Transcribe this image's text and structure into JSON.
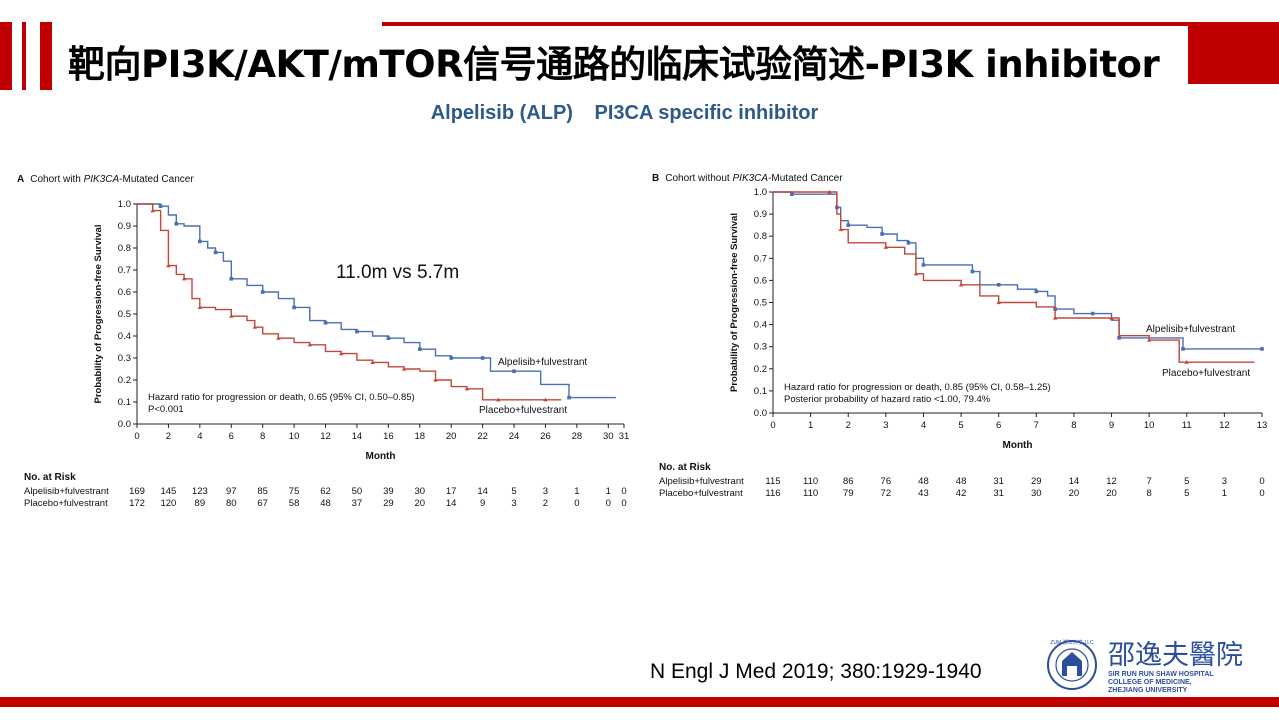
{
  "slide": {
    "title": "靶向PI3K/AKT/mTOR信号通路的临床试验简述-PI3K inhibitor",
    "subtitle_left": "Alpelisib (ALP)",
    "subtitle_right": "PI3CA specific inhibitor",
    "annotation": "11.0m vs  5.7m",
    "citation": "N Engl J Med 2019; 380:1929-1940",
    "colors": {
      "brand_red": "#c00000",
      "subtitle_blue": "#2e5a8a",
      "alpelisib": "#4a6fb5",
      "placebo": "#c2473a"
    }
  },
  "logo": {
    "chinese": "邵逸夫醫院",
    "english_lines": [
      "SIR RUN RUN SHAW HOSPITAL",
      "COLLEGE OF MEDICINE,",
      "ZHEJIANG UNIVERSITY"
    ],
    "emblem_text": "ZUM·浙江大学·LLC"
  },
  "chart_data": [
    {
      "type": "line",
      "panel_letter": "A",
      "title_prefix": "Cohort with ",
      "title_italic": "PIK3CA",
      "title_suffix": "-Mutated Cancer",
      "xlabel": "Month",
      "ylabel": "Probability of Progression-free Survival",
      "xlim": [
        0,
        31
      ],
      "ylim": [
        0,
        1.0
      ],
      "xticks": [
        0,
        2,
        4,
        6,
        8,
        10,
        12,
        14,
        16,
        18,
        20,
        22,
        24,
        26,
        28,
        30,
        31
      ],
      "yticks": [
        0,
        0.1,
        0.2,
        0.3,
        0.4,
        0.5,
        0.6,
        0.7,
        0.8,
        0.9,
        1.0
      ],
      "ytick_labels": [
        "0.0",
        "0.1",
        "0.2",
        "0.3",
        "0.4",
        "0.5",
        "0.6",
        "0.7",
        "0.8",
        "0.9",
        "1.0"
      ],
      "footnotes": [
        "Hazard ratio for progression or death, 0.65 (95% CI, 0.50–0.85)",
        "P<0.001"
      ],
      "series": [
        {
          "name": "Alpelisib+fulvestrant",
          "color": "#4a6fb5",
          "x": [
            0,
            1.5,
            2,
            2.5,
            3,
            4,
            4.5,
            5,
            5.5,
            6,
            7,
            8,
            9,
            10,
            11,
            12,
            13,
            14,
            15,
            16,
            17,
            18,
            19,
            20,
            21,
            22,
            22.5,
            24,
            25.7,
            27.5,
            30.5
          ],
          "y": [
            1.0,
            0.99,
            0.95,
            0.91,
            0.9,
            0.83,
            0.8,
            0.78,
            0.74,
            0.66,
            0.63,
            0.6,
            0.57,
            0.53,
            0.47,
            0.46,
            0.43,
            0.42,
            0.4,
            0.39,
            0.37,
            0.34,
            0.31,
            0.3,
            0.3,
            0.3,
            0.24,
            0.24,
            0.18,
            0.12,
            0.12
          ]
        },
        {
          "name": "Placebo+fulvestrant",
          "color": "#c2473a",
          "x": [
            0,
            1,
            1.5,
            2,
            2.5,
            3,
            3.5,
            4,
            5,
            6,
            7,
            7.5,
            8,
            9,
            10,
            11,
            12,
            13,
            14,
            15,
            16,
            17,
            18,
            19,
            20,
            21,
            22,
            23,
            24,
            26,
            27
          ],
          "y": [
            1.0,
            0.97,
            0.88,
            0.72,
            0.68,
            0.66,
            0.57,
            0.53,
            0.52,
            0.49,
            0.47,
            0.44,
            0.41,
            0.39,
            0.37,
            0.36,
            0.33,
            0.32,
            0.29,
            0.28,
            0.26,
            0.25,
            0.24,
            0.2,
            0.17,
            0.16,
            0.11,
            0.11,
            0.11,
            0.11,
            0.11
          ]
        }
      ],
      "risk_table": {
        "heading": "No. at Risk",
        "rows": [
          {
            "label": "Alpelisib+fulvestrant",
            "values": [
              "169",
              "145",
              "123",
              "97",
              "85",
              "75",
              "62",
              "50",
              "39",
              "30",
              "17",
              "14",
              "5",
              "3",
              "1",
              "1",
              "0"
            ]
          },
          {
            "label": "Placebo+fulvestrant",
            "values": [
              "172",
              "120",
              "89",
              "80",
              "67",
              "58",
              "48",
              "37",
              "29",
              "20",
              "14",
              "9",
              "3",
              "2",
              "0",
              "0",
              "0"
            ]
          }
        ]
      }
    },
    {
      "type": "line",
      "panel_letter": "B",
      "title_prefix": "Cohort without ",
      "title_italic": "PIK3CA",
      "title_suffix": "-Mutated Cancer",
      "xlabel": "Month",
      "ylabel": "Probability of Progression-free Survival",
      "xlim": [
        0,
        13
      ],
      "ylim": [
        0,
        1.0
      ],
      "xticks": [
        0,
        1,
        2,
        3,
        4,
        5,
        6,
        7,
        8,
        9,
        10,
        11,
        12,
        13
      ],
      "yticks": [
        0,
        0.1,
        0.2,
        0.3,
        0.4,
        0.5,
        0.6,
        0.7,
        0.8,
        0.9,
        1.0
      ],
      "ytick_labels": [
        "0.0",
        "0.1",
        "0.2",
        "0.3",
        "0.4",
        "0.5",
        "0.6",
        "0.7",
        "0.8",
        "0.9",
        "1.0"
      ],
      "footnotes": [
        "Hazard ratio for progression or death, 0.85 (95% CI, 0.58–1.25)",
        "Posterior probability of hazard ratio <1.00, 79.4%"
      ],
      "series": [
        {
          "name": "Alpelisib+fulvestrant",
          "color": "#4a6fb5",
          "x": [
            0,
            0.5,
            1.6,
            1.7,
            1.8,
            2,
            2.5,
            2.9,
            3.3,
            3.6,
            3.8,
            4,
            5,
            5.3,
            5.5,
            6,
            6.5,
            7,
            7.3,
            7.5,
            8,
            8.5,
            9,
            9.2,
            10,
            10.9,
            11.5,
            13
          ],
          "y": [
            1.0,
            0.99,
            0.99,
            0.93,
            0.87,
            0.85,
            0.84,
            0.81,
            0.78,
            0.77,
            0.7,
            0.67,
            0.67,
            0.64,
            0.58,
            0.58,
            0.56,
            0.55,
            0.53,
            0.47,
            0.45,
            0.45,
            0.42,
            0.34,
            0.34,
            0.29,
            0.29,
            0.29
          ]
        },
        {
          "name": "Placebo+fulvestrant",
          "color": "#c2473a",
          "x": [
            0,
            1.5,
            1.7,
            1.8,
            2,
            3,
            3.5,
            3.8,
            4,
            5,
            5.5,
            6,
            7,
            7.5,
            8,
            9,
            9.2,
            10,
            10.8,
            11,
            12.8
          ],
          "y": [
            1.0,
            1.0,
            0.9,
            0.83,
            0.77,
            0.75,
            0.72,
            0.63,
            0.6,
            0.58,
            0.53,
            0.5,
            0.48,
            0.43,
            0.43,
            0.43,
            0.35,
            0.33,
            0.23,
            0.23,
            0.23
          ]
        }
      ],
      "risk_table": {
        "heading": "No. at Risk",
        "rows": [
          {
            "label": "Alpelisib+fulvestrant",
            "values": [
              "115",
              "110",
              "86",
              "76",
              "48",
              "48",
              "31",
              "29",
              "14",
              "12",
              "7",
              "5",
              "3",
              "0"
            ]
          },
          {
            "label": "Placebo+fulvestrant",
            "values": [
              "116",
              "110",
              "79",
              "72",
              "43",
              "42",
              "31",
              "30",
              "20",
              "20",
              "8",
              "5",
              "1",
              "0"
            ]
          }
        ]
      }
    }
  ]
}
